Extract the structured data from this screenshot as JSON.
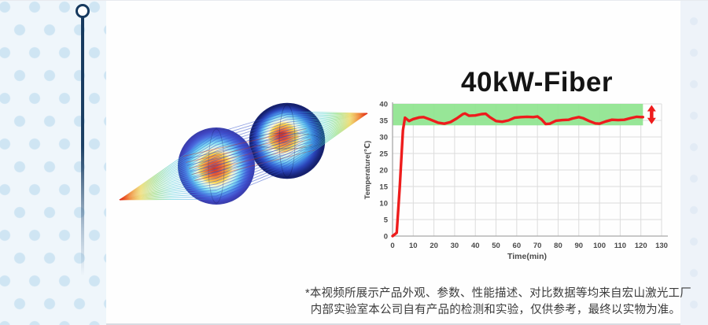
{
  "page": {
    "background": "#fefefe",
    "left_panel_bg": "#eff6fb",
    "left_panel_dot": "#cfe5f3",
    "pin_color": "#16395e",
    "right_strip_bg": "#eef3f9"
  },
  "visual": {
    "description": "lens-ray-tracing-simulation"
  },
  "chart_data": {
    "type": "line",
    "title": "40kW-Fiber",
    "xlabel": "Time(min)",
    "ylabel": "Temperature(℃)",
    "xlim": [
      0,
      130
    ],
    "ylim": [
      0,
      40
    ],
    "xticks": [
      0,
      10,
      20,
      30,
      40,
      50,
      60,
      70,
      80,
      90,
      100,
      110,
      120,
      130
    ],
    "yticks": [
      0,
      5,
      10,
      15,
      20,
      25,
      30,
      35,
      40
    ],
    "grid": true,
    "grid_color": "#dcdcdc",
    "axis_color": "#a8a8a8",
    "tick_color": "#4a4a4a",
    "band": {
      "y_from": 33.5,
      "y_to": 40,
      "x_from": 0,
      "x_to": 121,
      "color": "#8ee48e"
    },
    "arrow_color": "#ee1c1c",
    "series": [
      {
        "name": "temperature",
        "color": "#ee1c1c",
        "points": [
          [
            0,
            0
          ],
          [
            2,
            1
          ],
          [
            3.5,
            15
          ],
          [
            5,
            32
          ],
          [
            6,
            35.8
          ],
          [
            8,
            34.8
          ],
          [
            10,
            35.4
          ],
          [
            13,
            35.9
          ],
          [
            15,
            36
          ],
          [
            18,
            35.3
          ],
          [
            22,
            34.3
          ],
          [
            25,
            34
          ],
          [
            28,
            34.5
          ],
          [
            31,
            35.6
          ],
          [
            34,
            36.9
          ],
          [
            35,
            37.1
          ],
          [
            37,
            36.4
          ],
          [
            40,
            36.5
          ],
          [
            43,
            36.9
          ],
          [
            45,
            37
          ],
          [
            47,
            36
          ],
          [
            50,
            34.8
          ],
          [
            53,
            34.6
          ],
          [
            56,
            35
          ],
          [
            59,
            35.8
          ],
          [
            62,
            36
          ],
          [
            65,
            36.1
          ],
          [
            68,
            36
          ],
          [
            70,
            36.2
          ],
          [
            72,
            35.3
          ],
          [
            74,
            33.9
          ],
          [
            76,
            34
          ],
          [
            79,
            34.9
          ],
          [
            82,
            35.1
          ],
          [
            85,
            35.2
          ],
          [
            87,
            35.6
          ],
          [
            90,
            36
          ],
          [
            92,
            35.7
          ],
          [
            95,
            34.8
          ],
          [
            98,
            34.1
          ],
          [
            100,
            34
          ],
          [
            103,
            34.7
          ],
          [
            106,
            35.2
          ],
          [
            109,
            35.1
          ],
          [
            112,
            35.2
          ],
          [
            115,
            35.7
          ],
          [
            118,
            36.1
          ],
          [
            120,
            36
          ],
          [
            121,
            36
          ]
        ]
      }
    ]
  },
  "disclaimer": {
    "line1": "*本视频所展示产品外观、参数、性能描述、对比数据等均来自宏山激光工厂",
    "line2": "内部实验室本公司自有产品的检测和实验，仅供参考，最终以实物为准。"
  }
}
